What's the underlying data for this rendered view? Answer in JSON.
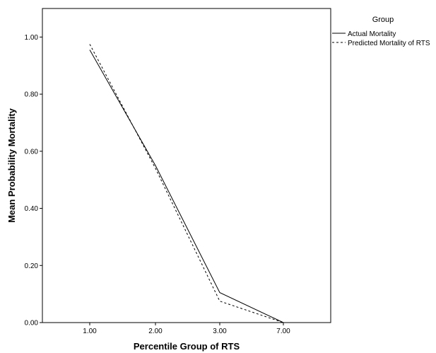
{
  "chart_data": {
    "type": "line",
    "categories": [
      "1.00",
      "2.00",
      "3.00",
      "7.00"
    ],
    "xlabel": "Percentile Group of RTS",
    "ylabel": "Mean Probability Mortality",
    "ylim": [
      0,
      1.1
    ],
    "yticks": [
      "0.00",
      "0.20",
      "0.40",
      "0.60",
      "0.80",
      "1.00"
    ],
    "grid": false,
    "legend_position": "top-right, outside plot",
    "legend_title": "Group",
    "series": [
      {
        "name": "Actual Mortality",
        "style": "solid",
        "color": "#000000",
        "values": [
          0.955,
          0.55,
          0.105,
          0.0
        ]
      },
      {
        "name": "Predicted Mortality of RTS",
        "style": "dashed",
        "color": "#000000",
        "values": [
          0.975,
          0.54,
          0.075,
          0.0
        ]
      }
    ]
  }
}
